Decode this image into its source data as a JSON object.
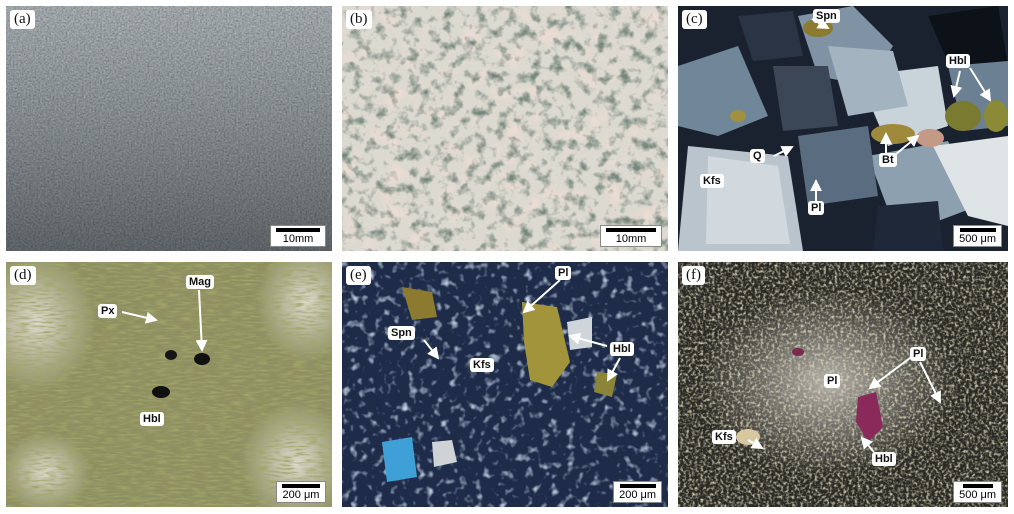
{
  "panels": {
    "a": {
      "label": "(a)",
      "scale": "10mm"
    },
    "b": {
      "label": "(b)",
      "scale": "10mm"
    },
    "c": {
      "label": "(c)",
      "scale": "500 μm",
      "annotations": {
        "spn": "Spn",
        "hbl": "Hbl",
        "q": "Q",
        "bt": "Bt",
        "kfs": "Kfs",
        "pl": "Pl"
      }
    },
    "d": {
      "label": "(d)",
      "scale": "200 μm",
      "annotations": {
        "px": "Px",
        "mag": "Mag",
        "hbl": "Hbl"
      }
    },
    "e": {
      "label": "(e)",
      "scale": "200 μm",
      "annotations": {
        "pl": "Pl",
        "spn": "Spn",
        "hbl": "Hbl",
        "kfs": "Kfs"
      }
    },
    "f": {
      "label": "(f)",
      "scale": "500 μm",
      "annotations": {
        "pl1": "Pl",
        "pl2": "Pl",
        "kfs": "Kfs",
        "hbl": "Hbl"
      }
    }
  },
  "colors": {
    "a_base": "#3e4a52",
    "b_base": "#d9d6cc",
    "c_base": "#1a2230",
    "d_base": "#8a8a5a",
    "e_base": "#1c2a48",
    "f_base": "#3a3a30"
  }
}
